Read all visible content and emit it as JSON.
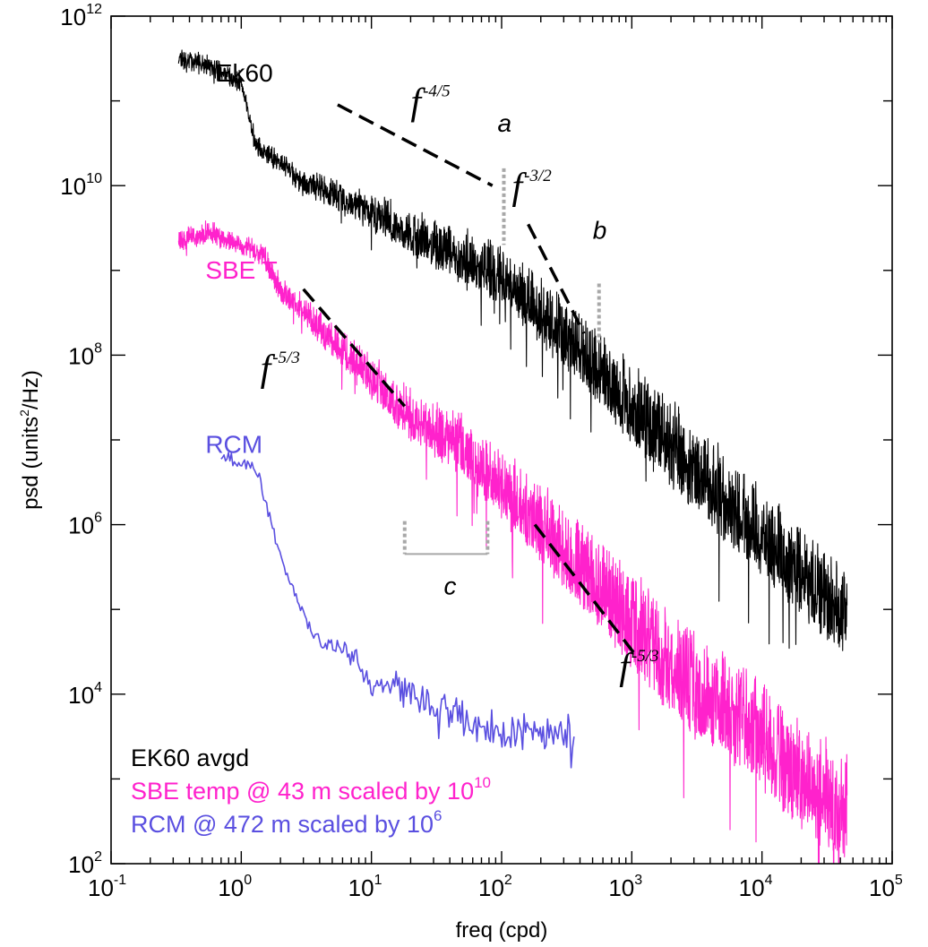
{
  "chart_data": {
    "type": "line",
    "title": "",
    "xlabel": "freq (cpd)",
    "ylabel": "psd (units²/Hz)",
    "ylabel_main": "psd  (units",
    "ylabel_sup": "2",
    "ylabel_tail": "/Hz)",
    "xscale": "log",
    "yscale": "log",
    "xlim": [
      0.1,
      100000
    ],
    "ylim": [
      100,
      1000000000000
    ],
    "x_ticks": [
      {
        "value": 0.1,
        "base": "10",
        "exp": "-1"
      },
      {
        "value": 1,
        "base": "10",
        "exp": "0"
      },
      {
        "value": 10,
        "base": "10",
        "exp": "1"
      },
      {
        "value": 100,
        "base": "10",
        "exp": "2"
      },
      {
        "value": 1000,
        "base": "10",
        "exp": "3"
      },
      {
        "value": 10000,
        "base": "10",
        "exp": "4"
      },
      {
        "value": 100000,
        "base": "10",
        "exp": "5"
      }
    ],
    "y_ticks": [
      {
        "value": 100,
        "base": "10",
        "exp": "2"
      },
      {
        "value": 10000,
        "base": "10",
        "exp": "4"
      },
      {
        "value": 1000000,
        "base": "10",
        "exp": "6"
      },
      {
        "value": 100000000,
        "base": "10",
        "exp": "8"
      },
      {
        "value": 10000000000,
        "base": "10",
        "exp": "10"
      },
      {
        "value": 1000000000000,
        "base": "10",
        "exp": "12"
      }
    ],
    "series": [
      {
        "name": "Ek60",
        "color": "#000000",
        "x_range": [
          0.33,
          45000
        ],
        "envelope_x": [
          0.33,
          0.6,
          1,
          1.3,
          2,
          3,
          5,
          10,
          20,
          50,
          100,
          200,
          500,
          1000,
          2000,
          5000,
          10000,
          20000,
          45000
        ],
        "envelope_y": [
          400000000000,
          300000000000,
          200000000000,
          35000000000,
          25000000000,
          15000000000,
          12000000000,
          8000000000,
          5000000000,
          3000000000,
          2000000000,
          800000000,
          250000000,
          80000000,
          30000000,
          8000000,
          3000000,
          1000000,
          300000
        ],
        "noise_decades": 1.3
      },
      {
        "name": "SBE T",
        "color": "#ff22cc",
        "x_range": [
          0.33,
          45000
        ],
        "envelope_x": [
          0.33,
          0.6,
          1,
          1.5,
          2,
          3,
          5,
          10,
          20,
          50,
          100,
          200,
          500,
          1000,
          2000,
          5000,
          10000,
          20000,
          45000
        ],
        "envelope_y": [
          3000000000,
          3500000000,
          2500000000,
          2000000000,
          800000000,
          500000000,
          250000000,
          100000000,
          40000000,
          20000000,
          8000000,
          3000000,
          800000,
          300000,
          100000,
          40000,
          15000,
          5000,
          2000
        ],
        "noise_decades": 1.6
      },
      {
        "name": "RCM",
        "color": "#5a4fe0",
        "x_range": [
          0.7,
          360
        ],
        "envelope_x": [
          0.7,
          1.3,
          2,
          3,
          4,
          6,
          8,
          10,
          12,
          15,
          20,
          40,
          60,
          100,
          360
        ],
        "envelope_y": [
          7000000,
          5000000,
          500000,
          100000,
          50000,
          45000,
          30000,
          15000,
          20000,
          18000,
          15000,
          9000,
          7000,
          6000,
          6000
        ],
        "noise_decades": 0.5
      }
    ],
    "series_labels": [
      {
        "text": "Ek60",
        "color": "#000000",
        "x": 1.2,
        "y": 170000000000
      },
      {
        "text": "SBE T",
        "color": "#ff22cc",
        "x": 1.0,
        "y": 800000000
      },
      {
        "text": "RCM",
        "color": "#5a4fe0",
        "x": 1.0,
        "y": 7000000
      }
    ],
    "slope_lines": [
      {
        "x1": 5.5,
        "y1": 90000000000,
        "x2": 85,
        "y2": 10000000000,
        "label_base": "f",
        "label_exp": "-4/5",
        "label_x": 20,
        "label_y": 70000000000
      },
      {
        "x1": 160,
        "y1": 3500000000,
        "x2": 430,
        "y2": 180000000,
        "label_base": "f",
        "label_exp": "-3/2",
        "label_x": 120,
        "label_y": 7000000000
      },
      {
        "x1": 3,
        "y1": 600000000,
        "x2": 18,
        "y2": 25000000,
        "label_base": "f",
        "label_exp": "-5/3",
        "label_x": 1.4,
        "label_y": 50000000
      },
      {
        "x1": 180,
        "y1": 1000000,
        "x2": 1050,
        "y2": 30000,
        "label_base": "f",
        "label_exp": "-5/3",
        "label_x": 800,
        "label_y": 15000
      }
    ],
    "markers": [
      {
        "label": "a",
        "x": 104,
        "y_top": 16000000000,
        "y_bottom": 2000000000,
        "label_y": 55000000000
      },
      {
        "label": "b",
        "x": 560,
        "y_top": 700000000,
        "y_bottom": 140000000,
        "label_y": 3000000000
      },
      {
        "label": "c",
        "x1": 18,
        "x2": 78,
        "y_top": 1100000,
        "y_bottom": 450000,
        "label_x": 36,
        "label_y": 150000
      }
    ],
    "legend": {
      "position": "bottom-left",
      "entries": [
        {
          "text": "EK60 avgd",
          "color": "#000000",
          "exp": ""
        },
        {
          "text": "SBE temp @ 43 m scaled by 10",
          "color": "#ff22cc",
          "exp": "10"
        },
        {
          "text": "RCM @ 472 m scaled by 10",
          "color": "#5a4fe0",
          "exp": "6"
        }
      ]
    }
  }
}
